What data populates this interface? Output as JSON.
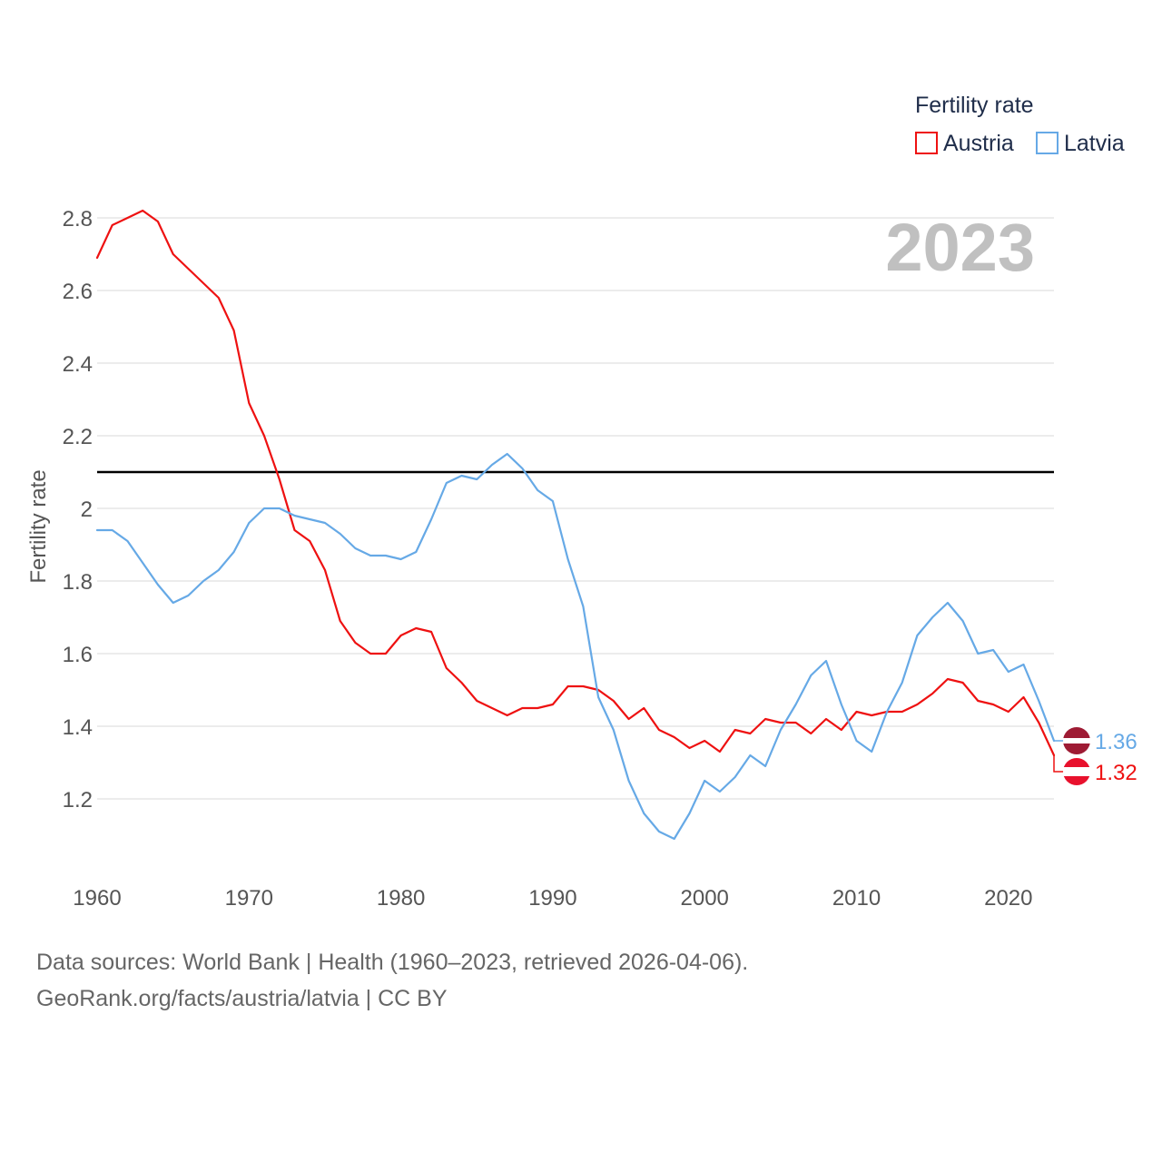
{
  "legend": {
    "title": "Fertility rate",
    "items": [
      {
        "label": "Austria",
        "color": "#ee1111"
      },
      {
        "label": "Latvia",
        "color": "#66a9e6"
      }
    ]
  },
  "year_label": "2023",
  "footer": {
    "line1": "Data sources: World Bank | Health (1960–2023, retrieved 2026-04-06).",
    "line2": "GeoRank.org/facts/austria/latvia | CC BY"
  },
  "chart_data": {
    "type": "line",
    "title": "",
    "xlabel": "",
    "ylabel": "Fertility rate",
    "xlim": [
      1960,
      2023
    ],
    "ylim": [
      1.0,
      2.9
    ],
    "xticks": [
      1960,
      1970,
      1980,
      1990,
      2000,
      2010,
      2020
    ],
    "xtick_labels": [
      "1960",
      "1970",
      "1980",
      "1990",
      "2000",
      "2010",
      "2020"
    ],
    "yticks": [
      1.2,
      1.4,
      1.6,
      1.8,
      2.0,
      2.2,
      2.4,
      2.6,
      2.8
    ],
    "ytick_labels": [
      "1.2",
      "1.4",
      "1.6",
      "1.8",
      "2",
      "2.2",
      "2.4",
      "2.6",
      "2.8"
    ],
    "reference_line": {
      "y": 2.1,
      "color": "#000000"
    },
    "x": [
      1960,
      1961,
      1962,
      1963,
      1964,
      1965,
      1966,
      1967,
      1968,
      1969,
      1970,
      1971,
      1972,
      1973,
      1974,
      1975,
      1976,
      1977,
      1978,
      1979,
      1980,
      1981,
      1982,
      1983,
      1984,
      1985,
      1986,
      1987,
      1988,
      1989,
      1990,
      1991,
      1992,
      1993,
      1994,
      1995,
      1996,
      1997,
      1998,
      1999,
      2000,
      2001,
      2002,
      2003,
      2004,
      2005,
      2006,
      2007,
      2008,
      2009,
      2010,
      2011,
      2012,
      2013,
      2014,
      2015,
      2016,
      2017,
      2018,
      2019,
      2020,
      2021,
      2022,
      2023
    ],
    "series": [
      {
        "name": "Austria",
        "color": "#ee1111",
        "end_label": "1.32",
        "values": [
          2.69,
          2.78,
          2.8,
          2.82,
          2.79,
          2.7,
          2.66,
          2.62,
          2.58,
          2.49,
          2.29,
          2.2,
          2.08,
          1.94,
          1.91,
          1.83,
          1.69,
          1.63,
          1.6,
          1.6,
          1.65,
          1.67,
          1.66,
          1.56,
          1.52,
          1.47,
          1.45,
          1.43,
          1.45,
          1.45,
          1.46,
          1.51,
          1.51,
          1.5,
          1.47,
          1.42,
          1.45,
          1.39,
          1.37,
          1.34,
          1.36,
          1.33,
          1.39,
          1.38,
          1.42,
          1.41,
          1.41,
          1.38,
          1.42,
          1.39,
          1.44,
          1.43,
          1.44,
          1.44,
          1.46,
          1.49,
          1.53,
          1.52,
          1.47,
          1.46,
          1.44,
          1.48,
          1.41,
          1.32
        ]
      },
      {
        "name": "Latvia",
        "color": "#66a9e6",
        "end_label": "1.36",
        "values": [
          1.94,
          1.94,
          1.91,
          1.85,
          1.79,
          1.74,
          1.76,
          1.8,
          1.83,
          1.88,
          1.96,
          2.0,
          2.0,
          1.98,
          1.97,
          1.96,
          1.93,
          1.89,
          1.87,
          1.87,
          1.86,
          1.88,
          1.97,
          2.07,
          2.09,
          2.08,
          2.12,
          2.15,
          2.11,
          2.05,
          2.02,
          1.86,
          1.73,
          1.48,
          1.39,
          1.25,
          1.16,
          1.11,
          1.09,
          1.16,
          1.25,
          1.22,
          1.26,
          1.32,
          1.29,
          1.39,
          1.46,
          1.54,
          1.58,
          1.46,
          1.36,
          1.33,
          1.44,
          1.52,
          1.65,
          1.7,
          1.74,
          1.69,
          1.6,
          1.61,
          1.55,
          1.57,
          1.47,
          1.36
        ]
      }
    ]
  }
}
